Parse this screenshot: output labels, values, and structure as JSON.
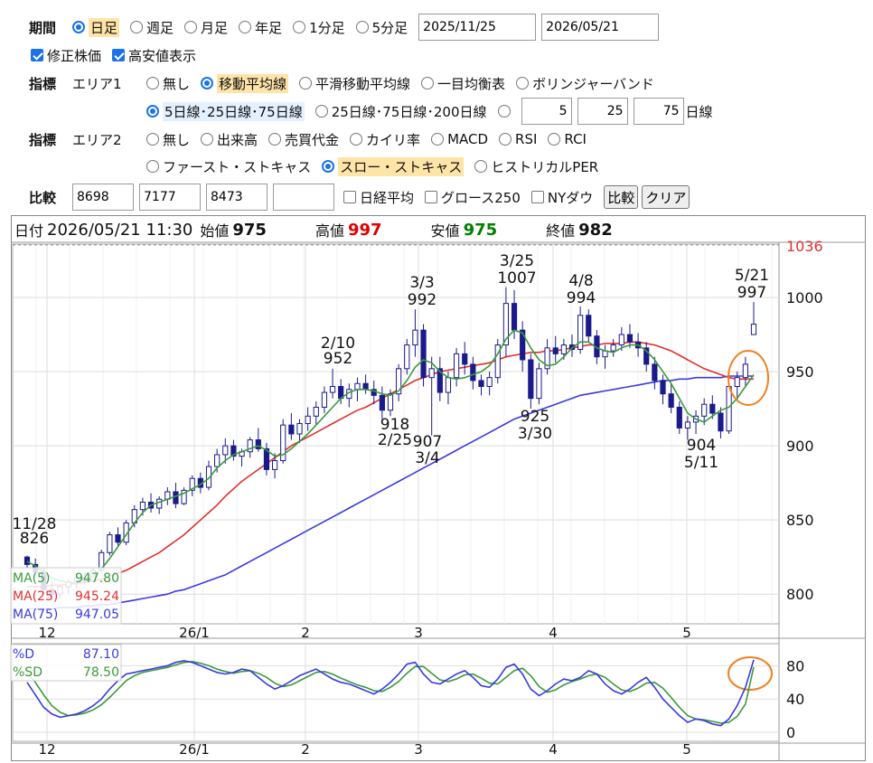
{
  "period": {
    "label": "期間",
    "options": [
      {
        "label": "日足",
        "selected": true
      },
      {
        "label": "週足",
        "selected": false
      },
      {
        "label": "月足",
        "selected": false
      },
      {
        "label": "年足",
        "selected": false
      },
      {
        "label": "1分足",
        "selected": false
      },
      {
        "label": "5分足",
        "selected": false
      }
    ],
    "start_date": "2025/11/25",
    "end_date": "2026/05/21"
  },
  "flags": {
    "adjusted": {
      "label": "修正株価",
      "checked": true
    },
    "high_cheap": {
      "label": "高安値表示",
      "checked": true
    }
  },
  "area1": {
    "label": "指標",
    "sub": "エリア1",
    "options": [
      "無し",
      "移動平均線",
      "平滑移動平均線",
      "一目均衡表",
      "ボリンジャーバンド"
    ],
    "selected": 1,
    "ma_presets": [
      "5日線･25日線･75日線",
      "25日線･75日線･200日線"
    ],
    "ma_selected": 0,
    "ma_values": [
      "5",
      "25",
      "75"
    ],
    "ma_unit": "日線"
  },
  "area2": {
    "label": "指標",
    "sub": "エリア2",
    "options": [
      "無し",
      "出来高",
      "売買代金",
      "カイリ率",
      "MACD",
      "RSI",
      "RCI"
    ],
    "options2": [
      "ファースト・ストキャス",
      "スロー・ストキャス",
      "ヒストリカルPER"
    ],
    "selected2": 1
  },
  "compare": {
    "label": "比較",
    "codes": [
      "8698",
      "7177",
      "8473",
      ""
    ],
    "checks": [
      "日経平均",
      "グロース250",
      "NYダウ"
    ],
    "compare_button": "比較",
    "clear_button": "クリア"
  },
  "info": {
    "date_label": "日付",
    "date_value": "2026/05/21 11:30",
    "open_label": "始値",
    "open": "975",
    "high_label": "高値",
    "high": "997",
    "low_label": "安値",
    "low": "975",
    "close_label": "終値",
    "close": "982"
  },
  "colors": {
    "up": "#ffffff",
    "down": "#1a1a8c",
    "ma5": "#3a9a3a",
    "ma25": "#e03030",
    "ma75": "#3a3ae0",
    "high_value": "#e00000",
    "low_value": "#008000",
    "stoch_d": "#3a3ae0",
    "stoch_sd": "#3a9a3a",
    "annotation_circle": "#f08020"
  },
  "chart_data": [
    {
      "type": "candlestick",
      "y_ticks": [
        800,
        850,
        900,
        950,
        1000
      ],
      "y_top_label": "1036",
      "ylim": [
        780,
        1036
      ],
      "x_month_labels": [
        "12",
        "26/1",
        "2",
        "3",
        "4",
        "5"
      ],
      "legend": [
        {
          "name": "MA(5)",
          "value": "947.80"
        },
        {
          "name": "MA(25)",
          "value": "945.24"
        },
        {
          "name": "MA(75)",
          "value": "947.05"
        }
      ],
      "annotations": [
        {
          "date": "11/28",
          "value": "826",
          "kind": "high"
        },
        {
          "date": "2/10",
          "value": "952",
          "kind": "high"
        },
        {
          "date": "2/25",
          "value": "918",
          "kind": "low"
        },
        {
          "date": "3/4",
          "value": "907",
          "kind": "low"
        },
        {
          "date": "3/3",
          "value": "992",
          "kind": "high"
        },
        {
          "date": "3/25",
          "value": "1007",
          "kind": "high"
        },
        {
          "date": "3/30",
          "value": "925",
          "kind": "low"
        },
        {
          "date": "4/8",
          "value": "994",
          "kind": "high"
        },
        {
          "date": "5/11",
          "value": "904",
          "kind": "low"
        },
        {
          "date": "5/21",
          "value": "997",
          "kind": "high"
        }
      ],
      "ohlc": [
        [
          825,
          826,
          818,
          820
        ],
        [
          820,
          824,
          812,
          815
        ],
        [
          815,
          818,
          800,
          803
        ],
        [
          803,
          808,
          795,
          800
        ],
        [
          800,
          806,
          797,
          805
        ],
        [
          805,
          810,
          800,
          808
        ],
        [
          808,
          812,
          804,
          811
        ],
        [
          811,
          815,
          806,
          809
        ],
        [
          809,
          818,
          808,
          816
        ],
        [
          816,
          830,
          814,
          828
        ],
        [
          828,
          842,
          826,
          840
        ],
        [
          840,
          845,
          832,
          835
        ],
        [
          835,
          850,
          833,
          848
        ],
        [
          848,
          860,
          845,
          857
        ],
        [
          857,
          865,
          853,
          862
        ],
        [
          862,
          868,
          855,
          858
        ],
        [
          858,
          866,
          854,
          864
        ],
        [
          864,
          872,
          860,
          869
        ],
        [
          869,
          875,
          858,
          861
        ],
        [
          861,
          872,
          860,
          870
        ],
        [
          870,
          880,
          866,
          878
        ],
        [
          878,
          882,
          868,
          872
        ],
        [
          872,
          890,
          870,
          886
        ],
        [
          886,
          898,
          882,
          894
        ],
        [
          894,
          905,
          888,
          900
        ],
        [
          900,
          904,
          890,
          893
        ],
        [
          893,
          898,
          886,
          896
        ],
        [
          896,
          906,
          892,
          904
        ],
        [
          904,
          912,
          896,
          898
        ],
        [
          898,
          902,
          880,
          884
        ],
        [
          884,
          895,
          878,
          890
        ],
        [
          890,
          918,
          888,
          914
        ],
        [
          914,
          922,
          904,
          908
        ],
        [
          908,
          918,
          902,
          915
        ],
        [
          915,
          926,
          910,
          920
        ],
        [
          920,
          930,
          914,
          926
        ],
        [
          926,
          940,
          922,
          936
        ],
        [
          936,
          952,
          932,
          940
        ],
        [
          940,
          945,
          928,
          932
        ],
        [
          932,
          942,
          926,
          938
        ],
        [
          938,
          946,
          930,
          942
        ],
        [
          942,
          948,
          935,
          938
        ],
        [
          938,
          944,
          928,
          934
        ],
        [
          934,
          940,
          918,
          924
        ],
        [
          924,
          938,
          920,
          935
        ],
        [
          935,
          955,
          930,
          952
        ],
        [
          952,
          972,
          948,
          968
        ],
        [
          968,
          992,
          960,
          978
        ],
        [
          978,
          982,
          940,
          946
        ],
        [
          946,
          960,
          907,
          952
        ],
        [
          952,
          960,
          930,
          936
        ],
        [
          936,
          950,
          928,
          946
        ],
        [
          946,
          966,
          940,
          962
        ],
        [
          962,
          970,
          948,
          955
        ],
        [
          955,
          960,
          938,
          944
        ],
        [
          944,
          948,
          934,
          940
        ],
        [
          940,
          950,
          934,
          946
        ],
        [
          946,
          972,
          942,
          968
        ],
        [
          968,
          1007,
          960,
          996
        ],
        [
          996,
          1005,
          972,
          978
        ],
        [
          978,
          984,
          950,
          958
        ],
        [
          958,
          962,
          925,
          932
        ],
        [
          932,
          956,
          928,
          952
        ],
        [
          952,
          972,
          948,
          966
        ],
        [
          966,
          974,
          956,
          962
        ],
        [
          962,
          972,
          958,
          968
        ],
        [
          968,
          975,
          960,
          965
        ],
        [
          965,
          994,
          962,
          988
        ],
        [
          988,
          992,
          970,
          974
        ],
        [
          974,
          978,
          955,
          960
        ],
        [
          960,
          968,
          952,
          964
        ],
        [
          964,
          972,
          960,
          968
        ],
        [
          968,
          980,
          964,
          975
        ],
        [
          975,
          982,
          966,
          970
        ],
        [
          970,
          976,
          960,
          966
        ],
        [
          966,
          970,
          950,
          955
        ],
        [
          955,
          960,
          938,
          944
        ],
        [
          944,
          948,
          928,
          935
        ],
        [
          935,
          942,
          922,
          926
        ],
        [
          926,
          930,
          908,
          912
        ],
        [
          912,
          920,
          904,
          916
        ],
        [
          916,
          924,
          908,
          920
        ],
        [
          920,
          932,
          914,
          928
        ],
        [
          928,
          934,
          918,
          922
        ],
        [
          922,
          926,
          905,
          910
        ],
        [
          910,
          942,
          908,
          940
        ],
        [
          940,
          950,
          930,
          946
        ],
        [
          946,
          960,
          940,
          955
        ],
        [
          975,
          997,
          975,
          982
        ]
      ],
      "ma5": [
        822,
        819,
        815,
        811,
        809,
        808,
        808,
        810,
        812,
        817,
        824,
        832,
        840,
        848,
        855,
        860,
        862,
        864,
        866,
        868,
        871,
        874,
        878,
        885,
        890,
        894,
        896,
        898,
        900,
        897,
        893,
        894,
        898,
        903,
        908,
        914,
        920,
        926,
        932,
        936,
        938,
        938,
        937,
        935,
        934,
        937,
        944,
        953,
        958,
        956,
        950,
        946,
        945,
        946,
        948,
        950,
        954,
        962,
        972,
        978,
        976,
        966,
        958,
        954,
        955,
        960,
        966,
        970,
        970,
        966,
        964,
        963,
        966,
        968,
        968,
        964,
        958,
        950,
        942,
        932,
        922,
        918,
        916,
        920,
        924,
        926,
        932,
        940,
        948
      ],
      "ma25": [
        805,
        805,
        805,
        806,
        806,
        807,
        807,
        808,
        809,
        810,
        812,
        814,
        816,
        819,
        822,
        825,
        828,
        832,
        836,
        840,
        845,
        850,
        855,
        860,
        866,
        871,
        876,
        880,
        884,
        888,
        892,
        896,
        900,
        903,
        906,
        909,
        912,
        915,
        918,
        921,
        924,
        926,
        929,
        932,
        935,
        938,
        941,
        944,
        946,
        948,
        950,
        951,
        952,
        953,
        954,
        955,
        956,
        958,
        960,
        961,
        962,
        963,
        963,
        964,
        964,
        965,
        966,
        967,
        968,
        968,
        969,
        969,
        969,
        970,
        970,
        969,
        968,
        966,
        964,
        961,
        958,
        955,
        952,
        950,
        948,
        946,
        945,
        945,
        945
      ],
      "ma75": [
        790,
        790,
        790,
        790,
        791,
        791,
        791,
        792,
        792,
        793,
        793,
        794,
        795,
        796,
        797,
        798,
        799,
        800,
        802,
        803,
        805,
        807,
        809,
        811,
        813,
        816,
        819,
        822,
        825,
        828,
        831,
        834,
        837,
        840,
        843,
        846,
        849,
        852,
        855,
        858,
        861,
        864,
        867,
        870,
        873,
        876,
        879,
        882,
        885,
        888,
        891,
        894,
        897,
        900,
        903,
        906,
        909,
        912,
        915,
        918,
        920,
        922,
        924,
        926,
        928,
        930,
        932,
        934,
        935,
        936,
        937,
        938,
        939,
        940,
        941,
        942,
        943,
        944,
        944,
        945,
        945,
        946,
        946,
        946,
        946,
        947,
        947,
        947,
        947
      ]
    },
    {
      "type": "line",
      "series": [
        {
          "name": "%D",
          "value": "87.10"
        },
        {
          "name": "%SD",
          "value": "78.50"
        }
      ],
      "y_ticks": [
        0,
        40,
        80
      ],
      "ylim": [
        0,
        100
      ],
      "d": [
        60,
        45,
        30,
        22,
        18,
        20,
        22,
        26,
        32,
        40,
        52,
        62,
        70,
        72,
        74,
        76,
        78,
        80,
        84,
        86,
        84,
        80,
        76,
        72,
        70,
        72,
        76,
        74,
        66,
        58,
        52,
        56,
        62,
        68,
        72,
        76,
        70,
        64,
        60,
        58,
        54,
        50,
        46,
        52,
        60,
        70,
        82,
        84,
        70,
        60,
        58,
        64,
        70,
        74,
        66,
        56,
        54,
        64,
        78,
        82,
        70,
        52,
        44,
        50,
        58,
        64,
        62,
        66,
        74,
        70,
        58,
        50,
        46,
        52,
        60,
        66,
        54,
        40,
        30,
        20,
        12,
        16,
        14,
        10,
        8,
        16,
        32,
        54,
        87.1
      ],
      "sd": [
        72,
        60,
        45,
        32,
        24,
        20,
        21,
        23,
        27,
        33,
        42,
        52,
        62,
        68,
        72,
        74,
        76,
        78,
        81,
        84,
        85,
        83,
        80,
        76,
        73,
        71,
        73,
        74,
        71,
        66,
        59,
        55,
        57,
        62,
        67,
        72,
        73,
        70,
        65,
        61,
        57,
        54,
        50,
        49,
        54,
        61,
        71,
        79,
        79,
        71,
        63,
        61,
        64,
        69,
        70,
        65,
        59,
        58,
        66,
        74,
        77,
        68,
        55,
        48,
        51,
        57,
        61,
        64,
        68,
        70,
        66,
        58,
        51,
        49,
        53,
        59,
        60,
        53,
        42,
        30,
        20,
        16,
        15,
        13,
        11,
        12,
        19,
        34,
        78.5
      ]
    }
  ]
}
